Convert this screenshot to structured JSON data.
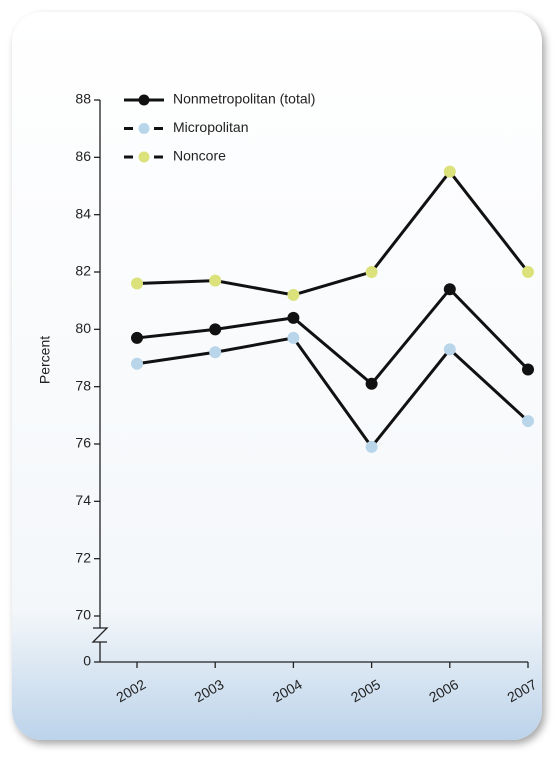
{
  "chart_data": {
    "type": "line",
    "y_label": "Percent",
    "categories": [
      "2002",
      "2003",
      "2004",
      "2005",
      "2006",
      "2007"
    ],
    "series": [
      {
        "name": "Nonmetropolitan (total)",
        "color": "#111111",
        "values": [
          79.7,
          80.0,
          80.4,
          78.1,
          81.4,
          78.6
        ]
      },
      {
        "name": "Micropolitan",
        "color": "#b9d5ea",
        "values": [
          78.8,
          79.2,
          79.7,
          75.9,
          79.3,
          76.8
        ]
      },
      {
        "name": "Noncore",
        "color": "#dbe27c",
        "values": [
          81.6,
          81.7,
          81.2,
          82.0,
          85.5,
          82.0
        ]
      }
    ],
    "line_color": "#111111",
    "ylim": [
      0,
      88
    ],
    "yticks": [
      0,
      70,
      72,
      74,
      76,
      78,
      80,
      82,
      84,
      86,
      88
    ],
    "axis_break": true,
    "legend": "top-left"
  }
}
